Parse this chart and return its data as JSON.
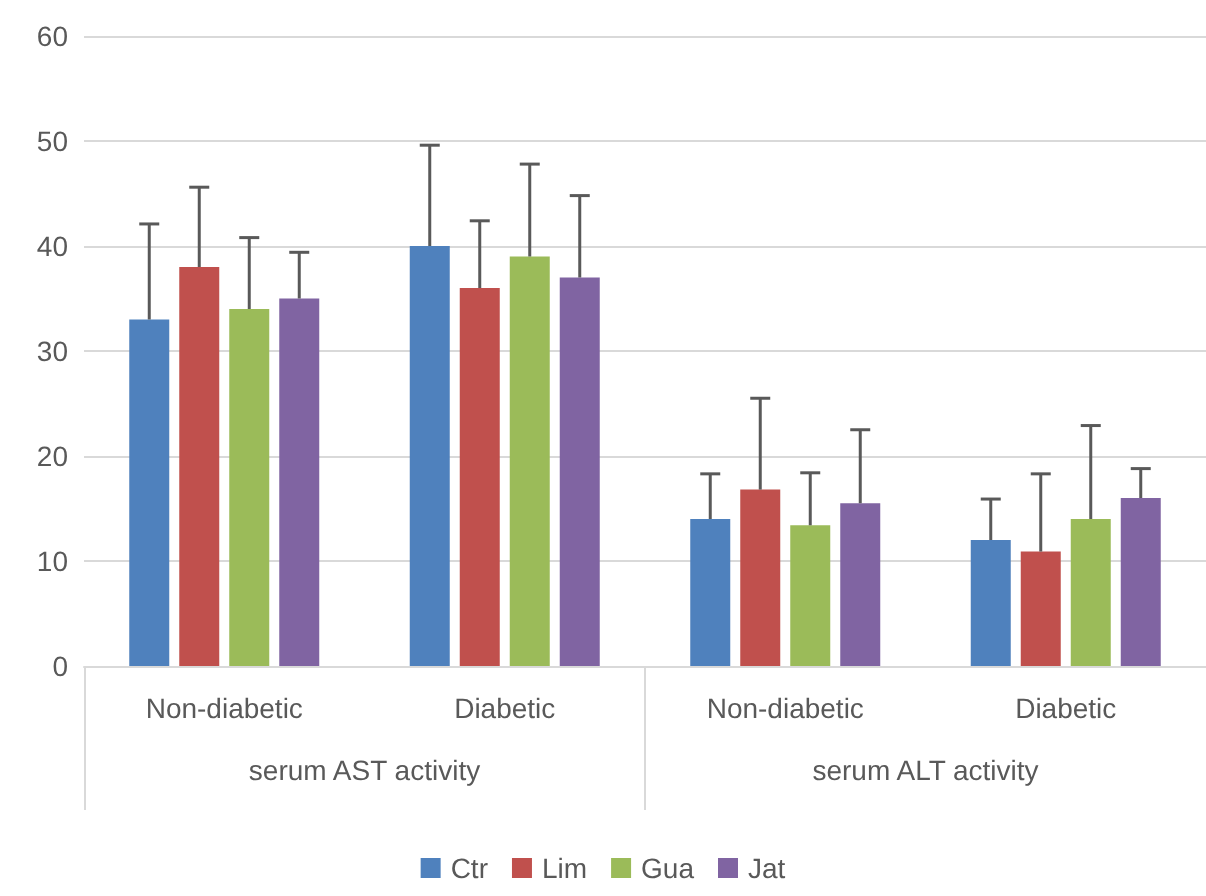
{
  "chart_data": {
    "type": "bar",
    "categories": [
      "Non-diabetic",
      "Diabetic",
      "Non-diabetic",
      "Diabetic"
    ],
    "annotations": [
      "serum AST activity",
      "serum ALT activity"
    ],
    "series": [
      {
        "name": "Ctr",
        "color": "#4f81bd",
        "values": [
          33,
          40,
          14,
          12
        ],
        "errors": [
          [
            33,
            42.1
          ],
          [
            40,
            49.6
          ],
          [
            14,
            18.3
          ],
          [
            12,
            15.9
          ]
        ]
      },
      {
        "name": "Lim",
        "color": "#c0504d",
        "values": [
          38,
          36,
          16.8,
          10.9
        ],
        "errors": [
          [
            38,
            45.6
          ],
          [
            36,
            42.4
          ],
          [
            16.8,
            25.5
          ],
          [
            10.9,
            18.3
          ]
        ]
      },
      {
        "name": "Gua",
        "color": "#9bbb59",
        "values": [
          34,
          39,
          13.4,
          14
        ],
        "errors": [
          [
            34,
            40.8
          ],
          [
            39,
            47.8
          ],
          [
            13.4,
            18.4
          ],
          [
            14,
            22.9
          ]
        ]
      },
      {
        "name": "Jat",
        "color": "#8064a2",
        "values": [
          35,
          37,
          15.5,
          16
        ],
        "errors": [
          [
            35,
            39.4
          ],
          [
            37,
            44.8
          ],
          [
            15.5,
            22.5
          ],
          [
            16,
            18.8
          ]
        ]
      }
    ],
    "ylim": [
      0,
      60
    ],
    "yticks": [
      0,
      10,
      20,
      30,
      40,
      50,
      60
    ],
    "grid": "y",
    "legend": "bottom"
  }
}
